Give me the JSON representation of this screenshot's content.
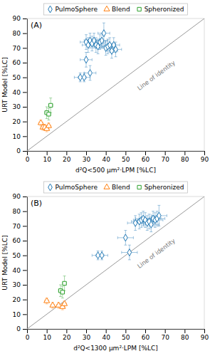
{
  "chart_data": [
    {
      "type": "scatter",
      "title": "(A)",
      "x_label": "d²Q<500 μm²·LPM [%LC]",
      "y_label": "URT Model [%LC]",
      "xlim": [
        0,
        90
      ],
      "ylim": [
        0,
        90
      ],
      "xticks": [
        0,
        10,
        20,
        30,
        40,
        50,
        60,
        70,
        80,
        90
      ],
      "yticks": [
        0,
        10,
        20,
        30,
        40,
        50,
        60,
        70,
        80,
        90
      ],
      "grid": false,
      "legend": "top",
      "series": [
        {
          "name": "PulmoSphere",
          "marker": "diamond",
          "x": [
            27,
            29,
            30,
            31,
            32,
            33,
            34,
            35,
            36,
            37,
            38,
            39,
            40,
            41,
            42,
            43,
            44,
            45,
            30,
            32
          ],
          "values": [
            50,
            50,
            74,
            72,
            75,
            73,
            75,
            72,
            71,
            74,
            75,
            80,
            70,
            71,
            72,
            68,
            72,
            69,
            62,
            53
          ],
          "xerr": [
            3,
            3,
            3,
            3,
            3,
            3,
            3,
            3,
            3,
            3,
            3,
            3,
            3,
            3,
            3,
            3,
            3,
            3,
            3,
            3
          ],
          "yerr": [
            3,
            3,
            5,
            5,
            5,
            5,
            5,
            5,
            5,
            5,
            5,
            7,
            5,
            5,
            5,
            5,
            5,
            5,
            5,
            5
          ]
        },
        {
          "name": "Blend",
          "marker": "triangle",
          "x": [
            7,
            8,
            9,
            10,
            11
          ],
          "values": [
            19,
            16,
            16,
            15,
            17
          ],
          "xerr": [
            1,
            1,
            1,
            1,
            1
          ],
          "yerr": [
            2,
            2,
            2,
            2,
            2
          ]
        },
        {
          "name": "Spheronized",
          "marker": "square",
          "x": [
            10,
            11,
            12
          ],
          "values": [
            26,
            25,
            31
          ],
          "xerr": [
            1,
            1,
            1
          ],
          "yerr": [
            4,
            4,
            5
          ]
        }
      ],
      "annotations": [
        {
          "text": "Line of identity",
          "x": 57,
          "y": 41,
          "line": {
            "x": [
              0,
              90
            ],
            "y": [
              0,
              90
            ]
          }
        }
      ]
    },
    {
      "type": "scatter",
      "title": "(B)",
      "x_label": "d²Q<1300 μm²·LPM [%LC]",
      "y_label": "URT Model [%LC]",
      "xlim": [
        0,
        90
      ],
      "ylim": [
        0,
        90
      ],
      "xticks": [
        0,
        10,
        20,
        30,
        40,
        50,
        60,
        70,
        80,
        90
      ],
      "yticks": [
        0,
        10,
        20,
        30,
        40,
        50,
        60,
        70,
        80,
        90
      ],
      "grid": false,
      "legend": "top",
      "series": [
        {
          "name": "PulmoSphere",
          "marker": "diamond",
          "x": [
            36,
            38,
            55,
            57,
            58,
            59,
            60,
            61,
            62,
            63,
            64,
            65,
            66,
            67,
            50,
            52
          ],
          "values": [
            50,
            50,
            72,
            73,
            74,
            75,
            74,
            72,
            73,
            71,
            75,
            74,
            75,
            77,
            62,
            52
          ],
          "xerr": [
            3,
            3,
            4,
            4,
            4,
            4,
            4,
            4,
            4,
            4,
            4,
            4,
            4,
            4,
            4,
            4
          ],
          "yerr": [
            3,
            3,
            5,
            5,
            5,
            5,
            5,
            5,
            5,
            5,
            5,
            5,
            5,
            7,
            5,
            5
          ]
        },
        {
          "name": "Blend",
          "marker": "triangle",
          "x": [
            10,
            13,
            16,
            18,
            19
          ],
          "values": [
            19,
            16,
            16,
            15,
            17
          ],
          "xerr": [
            1,
            1,
            1,
            1,
            1
          ],
          "yerr": [
            2,
            2,
            2,
            2,
            2
          ]
        },
        {
          "name": "Spheronized",
          "marker": "square",
          "x": [
            17,
            18,
            19
          ],
          "values": [
            26,
            25,
            31
          ],
          "xerr": [
            1,
            1,
            1
          ],
          "yerr": [
            4,
            4,
            5
          ]
        }
      ],
      "annotations": [
        {
          "text": "Line of identity",
          "x": 57,
          "y": 41,
          "line": {
            "x": [
              0,
              90
            ],
            "y": [
              0,
              90
            ]
          }
        }
      ]
    }
  ]
}
